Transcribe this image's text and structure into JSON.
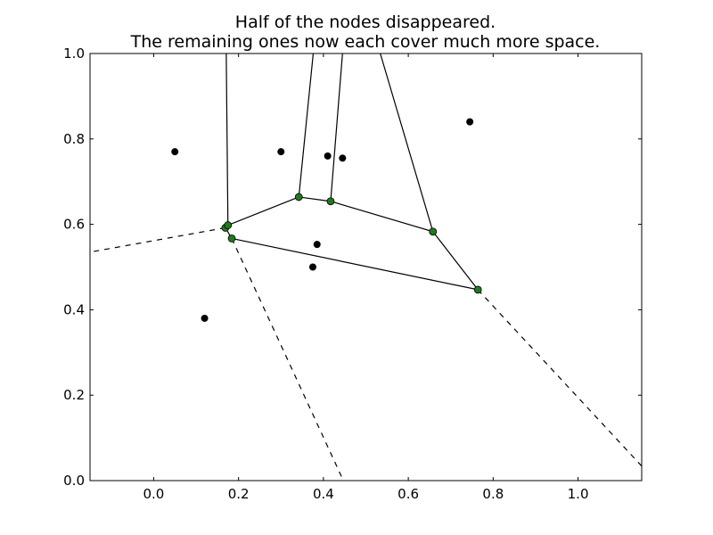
{
  "chart_data": {
    "type": "scatter",
    "title": "Half of the nodes disappeared.",
    "subtitle": "The remaining ones now each cover much more space.",
    "xlabel": "",
    "ylabel": "",
    "xlim": [
      -0.15,
      1.15
    ],
    "ylim": [
      0.0,
      1.0
    ],
    "xticks": [
      {
        "value": 0.0,
        "label": "0.0"
      },
      {
        "value": 0.2,
        "label": "0.2"
      },
      {
        "value": 0.4,
        "label": "0.4"
      },
      {
        "value": 0.6,
        "label": "0.6"
      },
      {
        "value": 0.8,
        "label": "0.8"
      },
      {
        "value": 1.0,
        "label": "1.0"
      }
    ],
    "yticks": [
      {
        "value": 0.0,
        "label": "0.0"
      },
      {
        "value": 0.2,
        "label": "0.2"
      },
      {
        "value": 0.4,
        "label": "0.4"
      },
      {
        "value": 0.6,
        "label": "0.6"
      },
      {
        "value": 0.8,
        "label": "0.8"
      },
      {
        "value": 1.0,
        "label": "1.0"
      }
    ],
    "grid": false,
    "colors": {
      "points": "#000000",
      "vertices": "#1f7a1f",
      "edges": "#000000"
    },
    "points": [
      {
        "x": 0.05,
        "y": 0.77
      },
      {
        "x": 0.3,
        "y": 0.77
      },
      {
        "x": 0.41,
        "y": 0.76
      },
      {
        "x": 0.445,
        "y": 0.755
      },
      {
        "x": 0.745,
        "y": 0.84
      },
      {
        "x": 0.385,
        "y": 0.553
      },
      {
        "x": 0.375,
        "y": 0.5
      },
      {
        "x": 0.12,
        "y": 0.38
      }
    ],
    "vertices": [
      {
        "x": 0.169,
        "y": 0.592
      },
      {
        "x": 0.175,
        "y": 0.598
      },
      {
        "x": 0.184,
        "y": 0.567
      },
      {
        "x": 0.342,
        "y": 0.664
      },
      {
        "x": 0.417,
        "y": 0.654
      },
      {
        "x": 0.658,
        "y": 0.583
      },
      {
        "x": 0.764,
        "y": 0.447
      }
    ],
    "edges": [
      {
        "from": [
          0.169,
          0.592
        ],
        "to": [
          0.175,
          0.598
        ],
        "style": "solid"
      },
      {
        "from": [
          0.169,
          0.592
        ],
        "to": [
          0.184,
          0.567
        ],
        "style": "solid"
      },
      {
        "from": [
          0.175,
          0.598
        ],
        "to": [
          0.342,
          0.664
        ],
        "style": "solid"
      },
      {
        "from": [
          0.342,
          0.664
        ],
        "to": [
          0.417,
          0.654
        ],
        "style": "solid"
      },
      {
        "from": [
          0.417,
          0.654
        ],
        "to": [
          0.658,
          0.583
        ],
        "style": "solid"
      },
      {
        "from": [
          0.658,
          0.583
        ],
        "to": [
          0.764,
          0.447
        ],
        "style": "solid"
      },
      {
        "from": [
          0.184,
          0.567
        ],
        "to": [
          0.764,
          0.447
        ],
        "style": "solid"
      },
      {
        "from": [
          0.175,
          0.598
        ],
        "to": [
          0.171,
          1.0
        ],
        "style": "solid"
      },
      {
        "from": [
          0.342,
          0.664
        ],
        "to": [
          0.376,
          1.0
        ],
        "style": "solid"
      },
      {
        "from": [
          0.417,
          0.654
        ],
        "to": [
          0.445,
          1.0
        ],
        "style": "solid"
      },
      {
        "from": [
          0.658,
          0.583
        ],
        "to": [
          0.534,
          1.0
        ],
        "style": "solid"
      },
      {
        "from": [
          0.169,
          0.592
        ],
        "to": [
          -0.15,
          0.535
        ],
        "style": "dashed"
      },
      {
        "from": [
          0.184,
          0.567
        ],
        "to": [
          0.447,
          0.0
        ],
        "style": "dashed"
      },
      {
        "from": [
          0.764,
          0.447
        ],
        "to": [
          1.15,
          0.034
        ],
        "style": "dashed"
      }
    ]
  }
}
